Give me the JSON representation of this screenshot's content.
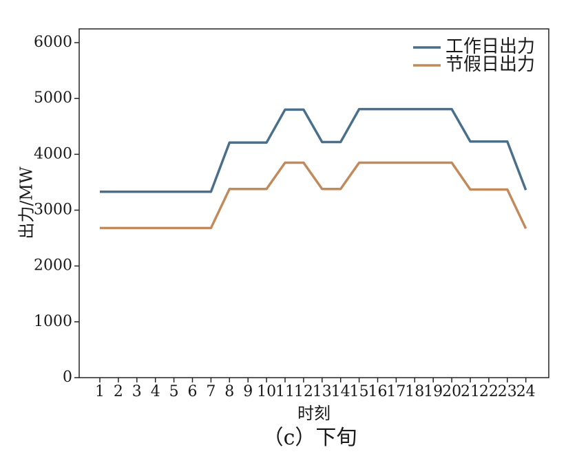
{
  "chart_data": {
    "type": "line",
    "title": "",
    "caption": "（c）下旬",
    "xlabel": "时刻",
    "ylabel": "出力/MW",
    "categories": [
      "1",
      "2",
      "3",
      "4",
      "5",
      "6",
      "7",
      "8",
      "9",
      "10",
      "11",
      "12",
      "13",
      "14",
      "15",
      "16",
      "17",
      "18",
      "19",
      "20",
      "21",
      "22",
      "23",
      "24"
    ],
    "ylim": [
      0,
      6000
    ],
    "yticks": [
      "0",
      "1000",
      "2000",
      "3000",
      "4000",
      "5000",
      "6000"
    ],
    "grid": false,
    "legend_position": "top-right",
    "series": [
      {
        "name": "工作日出力",
        "color": "#4a6f8a",
        "values": [
          3330,
          3330,
          3330,
          3330,
          3330,
          3330,
          3330,
          4210,
          4210,
          4210,
          4800,
          4800,
          4220,
          4220,
          4810,
          4810,
          4810,
          4810,
          4810,
          4810,
          4230,
          4230,
          4230,
          3360
        ]
      },
      {
        "name": "节假日出力",
        "color": "#c08a5c",
        "values": [
          2680,
          2680,
          2680,
          2680,
          2680,
          2680,
          2680,
          3380,
          3380,
          3380,
          3850,
          3850,
          3380,
          3380,
          3850,
          3850,
          3850,
          3850,
          3850,
          3850,
          3370,
          3370,
          3370,
          2670
        ]
      }
    ]
  }
}
